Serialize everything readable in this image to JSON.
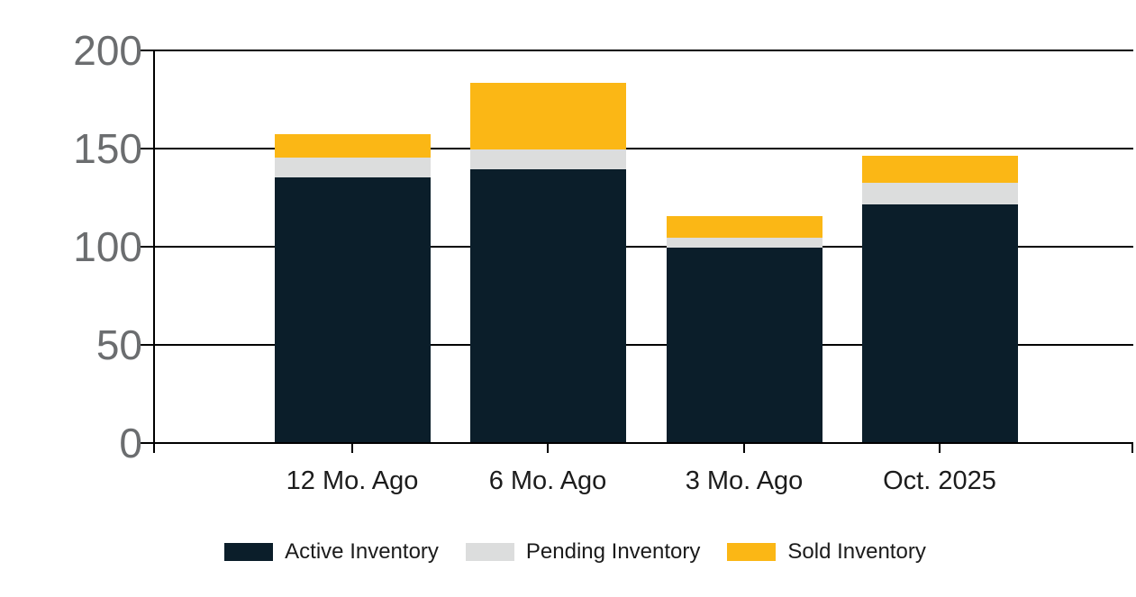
{
  "chart_data": {
    "type": "bar",
    "stacked": true,
    "title": "",
    "xlabel": "",
    "ylabel": "",
    "categories": [
      "12 Mo. Ago",
      "6 Mo. Ago",
      "3 Mo. Ago",
      "Oct. 2025"
    ],
    "series": [
      {
        "name": "Active Inventory",
        "color": "#0b1e2a",
        "values": [
          135,
          139,
          99,
          121
        ]
      },
      {
        "name": "Pending Inventory",
        "color": "#dcdddd",
        "values": [
          10,
          10,
          5,
          11
        ]
      },
      {
        "name": "Sold Inventory",
        "color": "#fbb715",
        "values": [
          12,
          34,
          11,
          14
        ]
      }
    ],
    "stack_totals": [
      157,
      183,
      115,
      146
    ],
    "ylim": [
      0,
      200
    ],
    "yticks": [
      0,
      50,
      100,
      150,
      200
    ],
    "ytick_labels": [
      "0",
      "50",
      "100",
      "150",
      "200"
    ],
    "grid": "horizontal",
    "legend_position": "bottom"
  },
  "colors": {
    "background": "#ffffff",
    "axis_and_grid": "#000000",
    "y_label_text": "#6b6d6f",
    "x_label_text": "#1c1c1c",
    "legend_text": "#1b1b1b",
    "active_inventory": "#0b1e2a",
    "pending_inventory": "#dcdddd",
    "sold_inventory": "#fbb715"
  }
}
